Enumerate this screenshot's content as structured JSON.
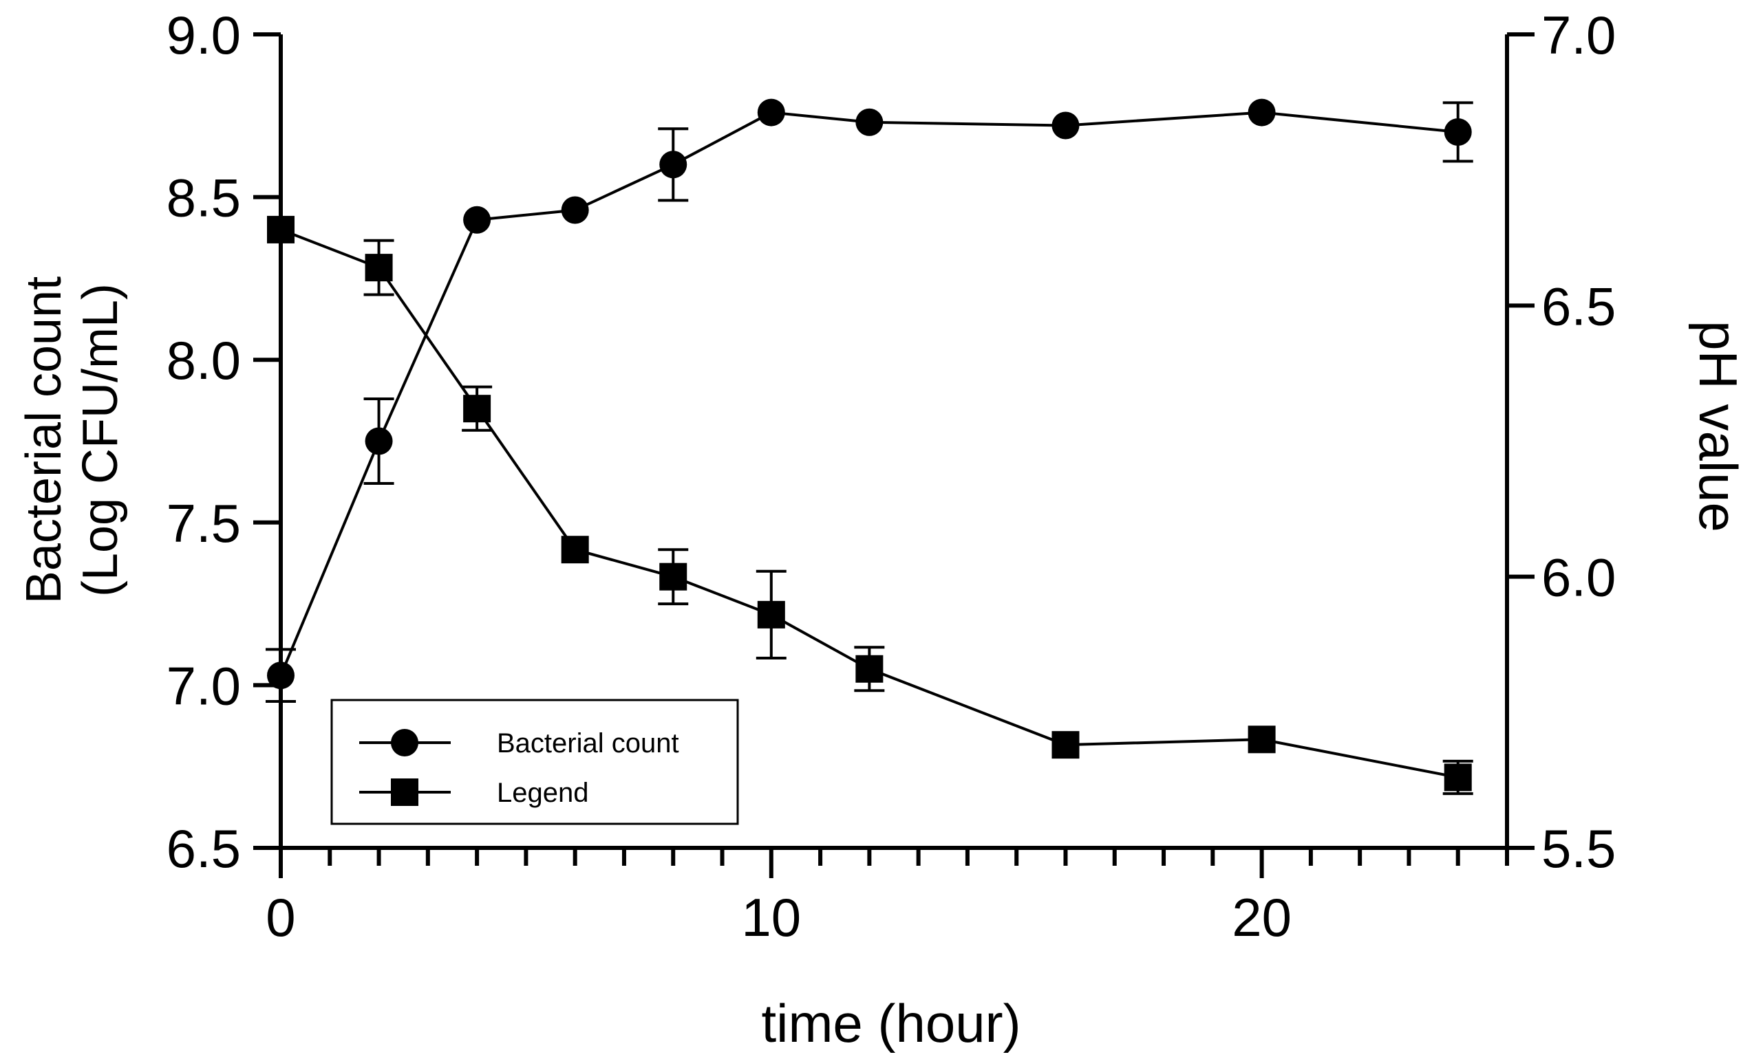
{
  "chart_data": {
    "type": "line",
    "title": "",
    "xlabel": "time (hour)",
    "ylabel_left_line1": "Bacterial count",
    "ylabel_left_line2": "(Log CFU/mL)",
    "ylabel_right": "pH value",
    "xlim": [
      0,
      25
    ],
    "ylim_left": [
      6.5,
      9.0
    ],
    "ylim_right": [
      5.5,
      7.0
    ],
    "x_ticks": [
      0,
      10,
      20
    ],
    "x_tick_labels": [
      "0",
      "10",
      "20"
    ],
    "left_ticks": [
      6.5,
      7.0,
      7.5,
      8.0,
      8.5,
      9.0
    ],
    "left_tick_labels": [
      "6.5",
      "7.0",
      "7.5",
      "8.0",
      "8.5",
      "9.0"
    ],
    "right_ticks": [
      5.5,
      6.0,
      6.5,
      7.0
    ],
    "right_tick_labels": [
      "5.5",
      "6.0",
      "6.5",
      "7.0"
    ],
    "grid": false,
    "legend_position": "bottom-left",
    "series": [
      {
        "name": "Bacterial count",
        "marker": "circle",
        "axis": "left",
        "x": [
          0,
          2,
          4,
          6,
          8,
          10,
          12,
          16,
          20,
          24
        ],
        "y": [
          7.03,
          7.75,
          8.43,
          8.46,
          8.6,
          8.76,
          8.73,
          8.72,
          8.76,
          8.7
        ],
        "error": [
          0.08,
          0.13,
          0.0,
          0.0,
          0.11,
          0.0,
          0.0,
          0.0,
          0.0,
          0.09
        ]
      },
      {
        "name": "Legend",
        "marker": "square",
        "axis": "right",
        "x": [
          0,
          2,
          4,
          6,
          8,
          10,
          12,
          16,
          20,
          24
        ],
        "y": [
          6.64,
          6.57,
          6.31,
          6.05,
          6.0,
          5.93,
          5.83,
          5.69,
          5.7,
          5.63
        ],
        "error": [
          0.0,
          0.05,
          0.04,
          0.0,
          0.05,
          0.08,
          0.04,
          0.0,
          0.0,
          0.03
        ]
      }
    ]
  }
}
